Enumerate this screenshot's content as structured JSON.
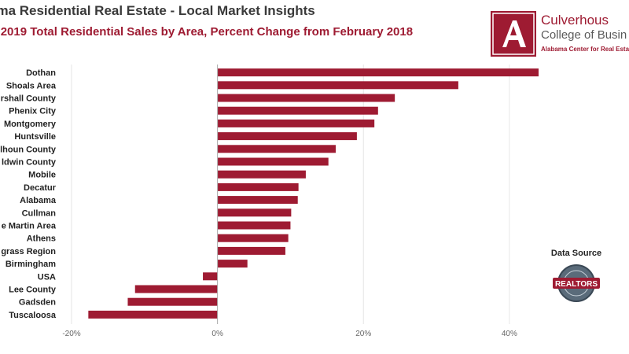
{
  "header": {
    "title": "ama Residential Real Estate - Local Market Insights",
    "subtitle": "ary 2019 Total Residential Sales by Area, Percent Change from February 2018"
  },
  "logo": {
    "line1": "Culverhous",
    "line2": "College of Busin",
    "line3": "Alabama Center for Real Estat"
  },
  "data_source": {
    "label": "Data Source",
    "seal_text": "REALTORS"
  },
  "colors": {
    "bar": "#9e1b32",
    "brand": "#9e1b32",
    "grid": "#e6e6e6",
    "zero_line": "#aaaaaa"
  },
  "chart_data": {
    "type": "bar",
    "orientation": "horizontal",
    "title": "ary 2019 Total Residential Sales by Area, Percent Change from February 2018",
    "categories": [
      "Dothan",
      "Shoals Area",
      "rshall County",
      "Phenix City",
      "Montgomery",
      "Huntsville",
      "lhoun County",
      "ldwin County",
      "Mobile",
      "Decatur",
      "Alabama",
      "Cullman",
      "e Martin Area",
      "Athens",
      "grass Region",
      "Birmingham",
      "USA",
      "Lee County",
      "Gadsden",
      "Tuscaloosa"
    ],
    "values": [
      44,
      33,
      24.3,
      22,
      21.5,
      19.1,
      16.2,
      15.2,
      12.1,
      11.1,
      11,
      10.1,
      10,
      9.7,
      9.3,
      4.1,
      -2,
      -11.3,
      -12.3,
      -17.7
    ],
    "xlim": [
      -20,
      44
    ],
    "xticks": [
      -20,
      0,
      20,
      40
    ],
    "xtick_labels": [
      "-20%",
      "0%",
      "20%",
      "40%"
    ],
    "xlabel": "",
    "ylabel": "",
    "grid": true,
    "legend": "none"
  }
}
